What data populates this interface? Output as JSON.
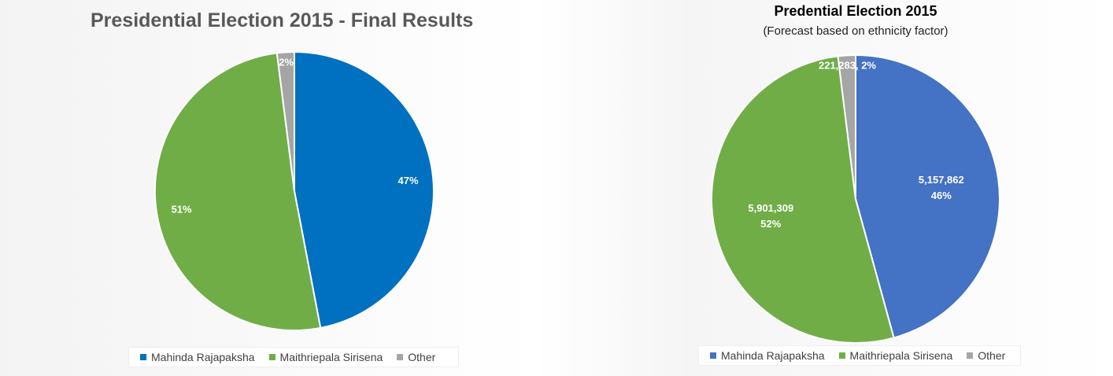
{
  "chart_data": [
    {
      "type": "pie",
      "title": "Presidential Election 2015 - Final Results",
      "subtitle": "",
      "categories": [
        "Mahinda Rajapaksha",
        "Maithriepala Sirisena",
        "Other"
      ],
      "percent_values": [
        47,
        51,
        2
      ],
      "labels": [
        "47%",
        "51%",
        "2%"
      ],
      "colors": [
        "#0070c0",
        "#70ad47",
        "#a5a5a5"
      ],
      "legend_position": "bottom"
    },
    {
      "type": "pie",
      "title": "Predential Election 2015",
      "subtitle": "(Forecast based on ethnicity factor)",
      "categories": [
        "Mahinda Rajapaksha",
        "Maithriepala Sirisena",
        "Other"
      ],
      "values": [
        5157862,
        5901309,
        221283
      ],
      "percent_values": [
        46,
        52,
        2
      ],
      "labels": [
        [
          "5,157,862",
          "46%"
        ],
        [
          "5,901,309",
          "52%"
        ],
        [
          "221,283, 2%"
        ]
      ],
      "colors": [
        "#4472c4",
        "#70ad47",
        "#a5a5a5"
      ],
      "legend_position": "bottom"
    }
  ]
}
